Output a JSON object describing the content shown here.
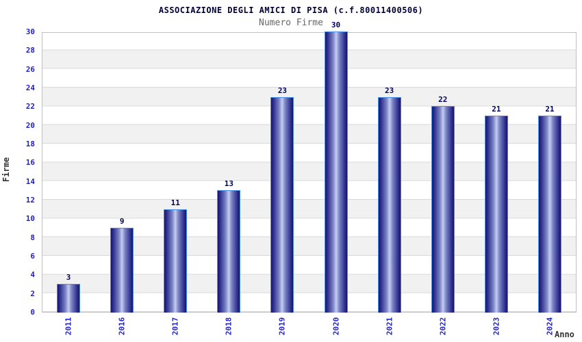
{
  "header": {
    "title": "ASSOCIAZIONE DEGLI AMICI DI PISA (c.f.80011400506)",
    "subtitle": "Numero Firme"
  },
  "chart_data": {
    "type": "bar",
    "title": "ASSOCIAZIONE DEGLI AMICI DI PISA (c.f.80011400506)",
    "subtitle": "Numero Firme",
    "xlabel": "Anno",
    "ylabel": "Firme",
    "categories": [
      "2011",
      "2016",
      "2017",
      "2018",
      "2019",
      "2020",
      "2021",
      "2022",
      "2023",
      "2024"
    ],
    "values": [
      3,
      9,
      11,
      13,
      23,
      30,
      23,
      22,
      21,
      21
    ],
    "ylim": [
      0,
      30
    ],
    "ytick_step": 2,
    "grid": "horizontal-bands-alternating",
    "legend": "none",
    "bar_label_position": "above",
    "x_tick_rotation": -90,
    "colors": {
      "title": "#000033",
      "subtitle": "#666666",
      "tick_label": "#2222cc",
      "value_label": "#00005a",
      "axis_title": "#333333",
      "bar_edge_dark": "#16166b",
      "bar_mid": "#7b84c4",
      "bar_center_light": "#c4cdf0",
      "bar_outline": "#4a8fe8",
      "band_gray": "#f1f1f1",
      "grid_line": "#d9d9d9",
      "plot_border": "#c0c0c0",
      "background": "#ffffff"
    }
  }
}
